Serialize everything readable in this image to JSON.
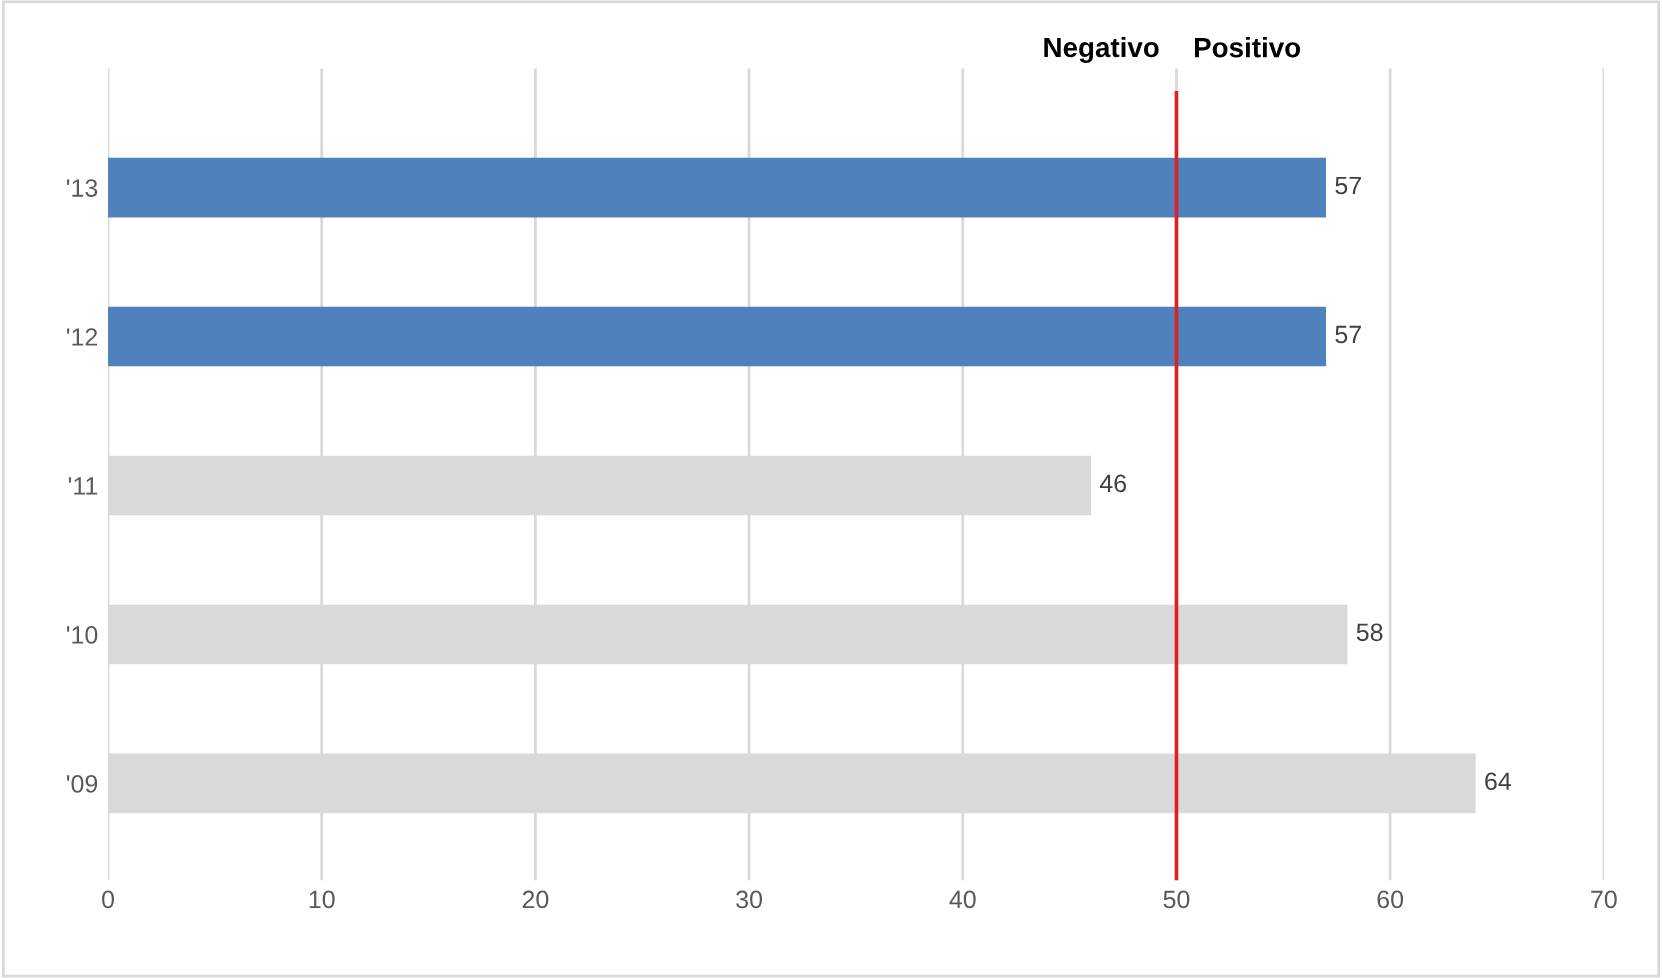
{
  "chart_data": {
    "type": "bar",
    "orientation": "horizontal",
    "categories": [
      "'13",
      "'12",
      "'11",
      "'10",
      "'09"
    ],
    "values": [
      57,
      57,
      46,
      58,
      64
    ],
    "colors": [
      "#4f81bd",
      "#4f81bd",
      "#d9d9d9",
      "#d9d9d9",
      "#d9d9d9"
    ],
    "xlim": [
      0,
      70
    ],
    "xticks": [
      0,
      10,
      20,
      30,
      40,
      50,
      60,
      70
    ],
    "grid": "x",
    "data_labels": true,
    "ref_lines": [
      {
        "axis": "x",
        "value": 50,
        "color": "#e02020"
      }
    ],
    "annotations": [
      "Negativo",
      "Positivo"
    ]
  }
}
